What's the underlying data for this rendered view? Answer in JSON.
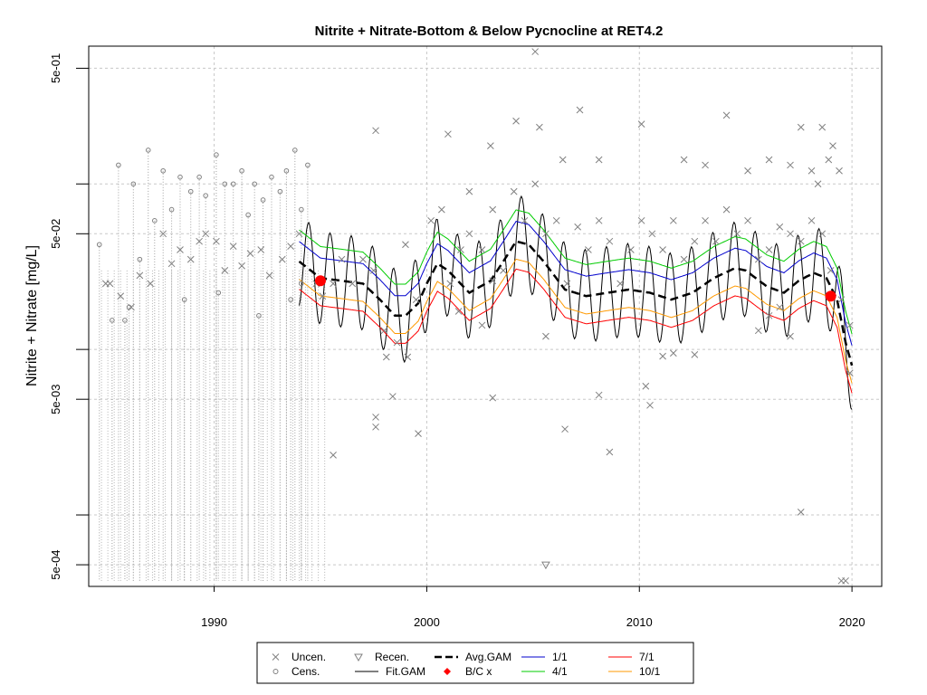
{
  "chart_data": {
    "type": "scatter",
    "title": "Nitrite + Nitrate-Bottom & Below Pycnocline at RET4.2",
    "xlabel": "",
    "ylabel": "Nitrite + Nitrate [mg/L]",
    "y_scale": "log",
    "xlim": [
      1984.1,
      2021.4
    ],
    "ylim": [
      0.00037,
      0.68
    ],
    "x_ticks": [
      1990,
      2000,
      2010,
      2020
    ],
    "x_tick_labels": [
      "1990",
      "2000",
      "2010",
      "2020"
    ],
    "y_ticks": [
      0.0005,
      0.005,
      0.05,
      0.5
    ],
    "y_tick_labels": [
      "5e-04",
      "5e-03",
      "5e-02",
      "5e-01"
    ],
    "y_minor_ticks": [
      0.001,
      0.01,
      0.1
    ],
    "grid": true,
    "legend": {
      "position": "bottom",
      "entries": [
        {
          "label": "Uncen.",
          "symbol": "x",
          "color": "#808080"
        },
        {
          "label": "Cens.",
          "symbol": "circle",
          "color": "#808080"
        },
        {
          "label": "Recen.",
          "symbol": "triangle-down",
          "color": "#808080"
        },
        {
          "label": "Fit.GAM",
          "symbol": "line",
          "color": "#000000"
        },
        {
          "label": "Avg.GAM",
          "symbol": "dashed-line",
          "color": "#000000"
        },
        {
          "label": "B/C x",
          "symbol": "diamond",
          "color": "#ff0000"
        },
        {
          "label": "1/1",
          "symbol": "line",
          "color": "#0000cd"
        },
        {
          "label": "4/1",
          "symbol": "line",
          "color": "#00cc00"
        },
        {
          "label": "7/1",
          "symbol": "line",
          "color": "#ff0000"
        },
        {
          "label": "10/1",
          "symbol": "line",
          "color": "#ff9900"
        }
      ]
    },
    "series": [
      {
        "name": "Uncen.",
        "kind": "points",
        "points": [
          [
            1984.9,
            0.025
          ],
          [
            1985.1,
            0.025
          ],
          [
            1985.6,
            0.021
          ],
          [
            1986.1,
            0.018
          ],
          [
            1986.5,
            0.028
          ],
          [
            1987.0,
            0.025
          ],
          [
            1987.6,
            0.05
          ],
          [
            1988.0,
            0.033
          ],
          [
            1988.4,
            0.04
          ],
          [
            1988.9,
            0.035
          ],
          [
            1989.3,
            0.045
          ],
          [
            1989.6,
            0.05
          ],
          [
            1990.1,
            0.045
          ],
          [
            1990.5,
            0.03
          ],
          [
            1990.9,
            0.042
          ],
          [
            1991.3,
            0.032
          ],
          [
            1991.7,
            0.038
          ],
          [
            1992.2,
            0.04
          ],
          [
            1992.6,
            0.028
          ],
          [
            1993.2,
            0.035
          ],
          [
            1993.6,
            0.042
          ],
          [
            1994.0,
            0.05
          ],
          [
            1994.8,
            0.025
          ],
          [
            1995.1,
            0.021
          ],
          [
            1995.6,
            0.025
          ],
          [
            1996.0,
            0.035
          ],
          [
            1996.5,
            0.025
          ],
          [
            1997.0,
            0.035
          ],
          [
            1997.5,
            0.03
          ],
          [
            1998.0,
            0.013
          ],
          [
            1998.6,
            0.011
          ],
          [
            1999.0,
            0.043
          ],
          [
            1999.5,
            0.02
          ],
          [
            2000.2,
            0.06
          ],
          [
            2000.7,
            0.07
          ],
          [
            2001.1,
            0.025
          ],
          [
            2001.6,
            0.04
          ],
          [
            2002.0,
            0.05
          ],
          [
            2002.6,
            0.04
          ],
          [
            2003.1,
            0.07
          ],
          [
            2003.6,
            0.03
          ],
          [
            2004.1,
            0.09
          ],
          [
            2004.6,
            0.06
          ],
          [
            2005.1,
            0.1
          ],
          [
            2005.6,
            0.05
          ],
          [
            2006.1,
            0.06
          ],
          [
            2006.6,
            0.025
          ],
          [
            2007.1,
            0.055
          ],
          [
            2007.6,
            0.04
          ],
          [
            2008.1,
            0.06
          ],
          [
            2008.6,
            0.045
          ],
          [
            2009.1,
            0.025
          ],
          [
            2009.6,
            0.04
          ],
          [
            2010.1,
            0.06
          ],
          [
            2010.6,
            0.05
          ],
          [
            2011.1,
            0.04
          ],
          [
            2011.6,
            0.06
          ],
          [
            2012.1,
            0.035
          ],
          [
            2012.6,
            0.045
          ],
          [
            2013.1,
            0.06
          ],
          [
            2013.6,
            0.045
          ],
          [
            2014.1,
            0.07
          ],
          [
            2014.6,
            0.05
          ],
          [
            2015.1,
            0.06
          ],
          [
            2015.6,
            0.035
          ],
          [
            2016.1,
            0.04
          ],
          [
            2016.6,
            0.055
          ],
          [
            2017.1,
            0.05
          ],
          [
            2017.6,
            0.045
          ],
          [
            2018.1,
            0.06
          ],
          [
            2018.6,
            0.05
          ],
          [
            2019.0,
            0.03
          ],
          [
            2019.5,
            0.02
          ],
          [
            2019.9,
            0.014
          ],
          [
            2005.1,
            0.63
          ],
          [
            2007.2,
            0.28
          ],
          [
            2004.2,
            0.24
          ],
          [
            1997.6,
            0.21
          ],
          [
            2005.3,
            0.22
          ],
          [
            2001.0,
            0.2
          ],
          [
            2002.0,
            0.09
          ],
          [
            2003.0,
            0.17
          ],
          [
            2006.4,
            0.14
          ],
          [
            2008.1,
            0.14
          ],
          [
            2010.1,
            0.23
          ],
          [
            2012.1,
            0.14
          ],
          [
            2013.1,
            0.13
          ],
          [
            2014.1,
            0.26
          ],
          [
            2015.1,
            0.12
          ],
          [
            2016.1,
            0.14
          ],
          [
            2017.1,
            0.13
          ],
          [
            2017.6,
            0.22
          ],
          [
            2018.1,
            0.12
          ],
          [
            2018.6,
            0.22
          ],
          [
            2019.1,
            0.17
          ],
          [
            2019.4,
            0.12
          ],
          [
            2018.9,
            0.14
          ],
          [
            2018.4,
            0.1
          ],
          [
            1998.1,
            0.009
          ],
          [
            1999.1,
            0.009
          ],
          [
            1999.6,
            0.0031
          ],
          [
            1998.4,
            0.0052
          ],
          [
            1997.6,
            0.0039
          ],
          [
            1997.6,
            0.0034
          ],
          [
            1995.6,
            0.0023
          ],
          [
            2001.5,
            0.017
          ],
          [
            2002.6,
            0.014
          ],
          [
            2003.1,
            0.0051
          ],
          [
            2003.1,
            0.026
          ],
          [
            2005.6,
            0.012
          ],
          [
            2006.5,
            0.0033
          ],
          [
            2008.1,
            0.0053
          ],
          [
            2008.6,
            0.0024
          ],
          [
            2010.3,
            0.006
          ],
          [
            2010.5,
            0.0046
          ],
          [
            2011.1,
            0.0091
          ],
          [
            2011.6,
            0.0095
          ],
          [
            2012.6,
            0.0093
          ],
          [
            2015.6,
            0.013
          ],
          [
            2016.1,
            0.016
          ],
          [
            2016.6,
            0.018
          ],
          [
            2017.1,
            0.012
          ],
          [
            2017.6,
            0.00104
          ],
          [
            2019.5,
            0.0004
          ],
          [
            2019.7,
            0.0004
          ],
          [
            2019.9,
            0.0072
          ]
        ]
      },
      {
        "name": "Cens.",
        "kind": "points",
        "points": [
          [
            1984.6,
            0.043
          ],
          [
            1985.2,
            0.015
          ],
          [
            1985.5,
            0.13
          ],
          [
            1985.8,
            0.015
          ],
          [
            1986.2,
            0.1
          ],
          [
            1986.5,
            0.035
          ],
          [
            1986.9,
            0.16
          ],
          [
            1987.2,
            0.06
          ],
          [
            1987.6,
            0.12
          ],
          [
            1988.0,
            0.07
          ],
          [
            1988.4,
            0.11
          ],
          [
            1988.9,
            0.09
          ],
          [
            1989.3,
            0.11
          ],
          [
            1989.6,
            0.085
          ],
          [
            1990.1,
            0.15
          ],
          [
            1990.5,
            0.1
          ],
          [
            1990.9,
            0.1
          ],
          [
            1991.3,
            0.12
          ],
          [
            1991.6,
            0.065
          ],
          [
            1991.9,
            0.1
          ],
          [
            1992.3,
            0.08
          ],
          [
            1992.7,
            0.11
          ],
          [
            1993.1,
            0.09
          ],
          [
            1993.4,
            0.12
          ],
          [
            1993.8,
            0.16
          ],
          [
            1994.1,
            0.07
          ],
          [
            1994.4,
            0.13
          ],
          [
            1994.1,
            0.025
          ],
          [
            1986.0,
            0.018
          ],
          [
            1988.6,
            0.02
          ],
          [
            1990.2,
            0.022
          ],
          [
            1992.1,
            0.016
          ],
          [
            1993.6,
            0.02
          ]
        ]
      },
      {
        "name": "Recen.",
        "kind": "points",
        "points": [
          [
            2005.6,
            0.0005
          ]
        ]
      },
      {
        "name": "Fit.GAM",
        "kind": "wave",
        "freq": 1.0,
        "amp": 0.28
      },
      {
        "name": "Avg.GAM",
        "kind": "curve",
        "points": [
          [
            1994.0,
            0.034
          ],
          [
            1995.0,
            0.027
          ],
          [
            1996.0,
            0.026
          ],
          [
            1997.0,
            0.025
          ],
          [
            1997.8,
            0.02
          ],
          [
            1998.5,
            0.016
          ],
          [
            1999.0,
            0.016
          ],
          [
            1999.6,
            0.019
          ],
          [
            2000.0,
            0.025
          ],
          [
            2000.5,
            0.033
          ],
          [
            2001.0,
            0.03
          ],
          [
            2002.0,
            0.022
          ],
          [
            2003.0,
            0.026
          ],
          [
            2003.6,
            0.034
          ],
          [
            2004.2,
            0.045
          ],
          [
            2004.8,
            0.043
          ],
          [
            2005.5,
            0.034
          ],
          [
            2006.5,
            0.023
          ],
          [
            2007.5,
            0.021
          ],
          [
            2008.5,
            0.022
          ],
          [
            2009.5,
            0.023
          ],
          [
            2010.5,
            0.022
          ],
          [
            2011.5,
            0.02
          ],
          [
            2012.5,
            0.022
          ],
          [
            2013.5,
            0.027
          ],
          [
            2014.5,
            0.031
          ],
          [
            2015.0,
            0.03
          ],
          [
            2016.0,
            0.024
          ],
          [
            2016.8,
            0.022
          ],
          [
            2017.5,
            0.026
          ],
          [
            2018.2,
            0.029
          ],
          [
            2018.8,
            0.027
          ],
          [
            2019.3,
            0.02
          ],
          [
            2019.7,
            0.011
          ],
          [
            2020.0,
            0.008
          ]
        ]
      },
      {
        "name": "1/1",
        "kind": "offset",
        "base": "Avg.GAM",
        "factor": 1.32
      },
      {
        "name": "4/1",
        "kind": "offset",
        "base": "Avg.GAM",
        "factor": 1.55
      },
      {
        "name": "7/1",
        "kind": "offset",
        "base": "Avg.GAM",
        "factor": 0.68
      },
      {
        "name": "10/1",
        "kind": "offset",
        "base": "Avg.GAM",
        "factor": 0.78
      },
      {
        "name": "B/C x",
        "kind": "points",
        "points": [
          [
            1995.0,
            0.026
          ],
          [
            2019.0,
            0.021
          ]
        ]
      }
    ]
  }
}
